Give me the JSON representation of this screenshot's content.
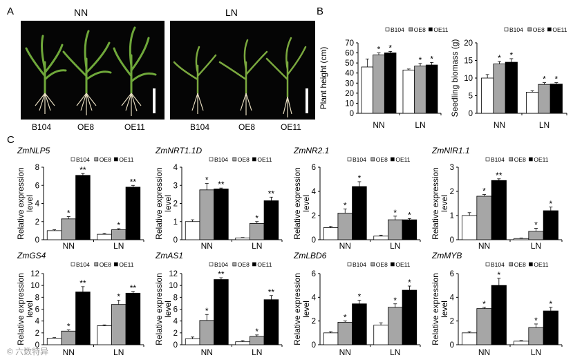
{
  "panel_labels": {
    "a": "A",
    "b": "B",
    "c": "C"
  },
  "photo": {
    "titles": [
      "NN",
      "LN"
    ],
    "plant_labels": [
      "B104",
      "OE8",
      "OE11",
      "B104",
      "OE8",
      "OE11"
    ]
  },
  "colors": {
    "B104": "#ffffff",
    "OE8": "#a6a6a6",
    "OE11": "#000000"
  },
  "watermark": "© 六数特异",
  "chart_data": [
    {
      "id": "b1",
      "type": "bar",
      "title": "",
      "italic": false,
      "categories": [
        "NN",
        "LN"
      ],
      "series": [
        {
          "name": "B104",
          "values": [
            46,
            43
          ]
        },
        {
          "name": "OE8",
          "values": [
            58,
            47
          ]
        },
        {
          "name": "OE11",
          "values": [
            60,
            48
          ]
        }
      ],
      "errors": [
        [
          8,
          1
        ],
        [
          2,
          2.5
        ],
        [
          1.5,
          2.5
        ]
      ],
      "stars": [
        [
          "",
          ""
        ],
        [
          "*",
          "*"
        ],
        [
          "*",
          "*"
        ]
      ],
      "ylabel": "Plant height (cm)",
      "ylim": [
        0,
        70
      ],
      "yticks": [
        "0",
        "10",
        "20",
        "30",
        "40",
        "50",
        "60",
        "70"
      ]
    },
    {
      "id": "b2",
      "type": "bar",
      "title": "",
      "italic": false,
      "categories": [
        "NN",
        "LN"
      ],
      "series": [
        {
          "name": "B104",
          "values": [
            10,
            6
          ]
        },
        {
          "name": "OE8",
          "values": [
            14,
            8.2
          ]
        },
        {
          "name": "OE11",
          "values": [
            14.5,
            8.3
          ]
        }
      ],
      "errors": [
        [
          1,
          0.4
        ],
        [
          0.7,
          0.5
        ],
        [
          1,
          0.4
        ]
      ],
      "stars": [
        [
          "",
          ""
        ],
        [
          "*",
          "*"
        ],
        [
          "*",
          "*"
        ]
      ],
      "ylabel": "Seedling biomass (g)",
      "ylim": [
        0,
        20
      ],
      "yticks": [
        "0",
        "5",
        "10",
        "15",
        "20"
      ]
    },
    {
      "id": "c1",
      "type": "bar",
      "title": "ZmNLP5",
      "italic": true,
      "categories": [
        "NN",
        "LN"
      ],
      "series": [
        {
          "name": "B104",
          "values": [
            1.0,
            0.6
          ]
        },
        {
          "name": "OE8",
          "values": [
            2.3,
            1.1
          ]
        },
        {
          "name": "OE11",
          "values": [
            7.1,
            5.8
          ]
        }
      ],
      "errors": [
        [
          0.1,
          0.1
        ],
        [
          0.25,
          0.12
        ],
        [
          0.2,
          0.2
        ]
      ],
      "stars": [
        [
          "",
          ""
        ],
        [
          "*",
          "*"
        ],
        [
          "**",
          "**"
        ]
      ],
      "ylabel": "Relative expression level",
      "ylim": [
        0,
        8
      ],
      "yticks": [
        "0",
        "2",
        "4",
        "6",
        "8"
      ]
    },
    {
      "id": "c2",
      "type": "bar",
      "title": "ZmNRT1.1D",
      "italic": true,
      "categories": [
        "NN",
        "LN"
      ],
      "series": [
        {
          "name": "B104",
          "values": [
            1.0,
            0.1
          ]
        },
        {
          "name": "OE8",
          "values": [
            2.75,
            0.9
          ]
        },
        {
          "name": "OE11",
          "values": [
            2.8,
            2.15
          ]
        }
      ],
      "errors": [
        [
          0.1,
          0.02
        ],
        [
          0.35,
          0.1
        ],
        [
          0.05,
          0.2
        ]
      ],
      "stars": [
        [
          "",
          ""
        ],
        [
          "*",
          "*"
        ],
        [
          "**",
          "**"
        ]
      ],
      "ylabel": "Relative expression level",
      "ylim": [
        0,
        4
      ],
      "yticks": [
        "0",
        "1",
        "2",
        "3",
        "4"
      ]
    },
    {
      "id": "c3",
      "type": "bar",
      "title": "ZmNR2.1",
      "italic": true,
      "categories": [
        "NN",
        "LN"
      ],
      "series": [
        {
          "name": "B104",
          "values": [
            1.0,
            0.3
          ]
        },
        {
          "name": "OE8",
          "values": [
            2.2,
            1.65
          ]
        },
        {
          "name": "OE11",
          "values": [
            4.4,
            1.65
          ]
        }
      ],
      "errors": [
        [
          0.1,
          0.08
        ],
        [
          0.35,
          0.3
        ],
        [
          0.4,
          0.1
        ]
      ],
      "stars": [
        [
          "",
          ""
        ],
        [
          "*",
          "*"
        ],
        [
          "*",
          "*"
        ]
      ],
      "ylabel": "Relative expression level",
      "ylim": [
        0,
        6
      ],
      "yticks": [
        "0",
        "2",
        "4",
        "6"
      ]
    },
    {
      "id": "c4",
      "type": "bar",
      "title": "ZmNIR1.1",
      "italic": true,
      "categories": [
        "NN",
        "LN"
      ],
      "series": [
        {
          "name": "B104",
          "values": [
            1.0,
            0.05
          ]
        },
        {
          "name": "OE8",
          "values": [
            1.8,
            0.35
          ]
        },
        {
          "name": "OE11",
          "values": [
            2.45,
            1.2
          ]
        }
      ],
      "errors": [
        [
          0.12,
          0.02
        ],
        [
          0.07,
          0.12
        ],
        [
          0.07,
          0.15
        ]
      ],
      "stars": [
        [
          "",
          ""
        ],
        [
          "*",
          "*"
        ],
        [
          "**",
          "*"
        ]
      ],
      "ylabel": "Relative expression level",
      "ylim": [
        0,
        3
      ],
      "yticks": [
        "0",
        "1",
        "2",
        "3"
      ]
    },
    {
      "id": "c5",
      "type": "bar",
      "title": "ZmGS4",
      "italic": true,
      "categories": [
        "NN",
        "LN"
      ],
      "series": [
        {
          "name": "B104",
          "values": [
            1.1,
            3.2
          ]
        },
        {
          "name": "OE8",
          "values": [
            2.3,
            6.8
          ]
        },
        {
          "name": "OE11",
          "values": [
            8.9,
            8.7
          ]
        }
      ],
      "errors": [
        [
          0.1,
          0.15
        ],
        [
          0.2,
          0.7
        ],
        [
          0.9,
          0.3
        ]
      ],
      "stars": [
        [
          "",
          ""
        ],
        [
          "*",
          "*"
        ],
        [
          "**",
          "**"
        ]
      ],
      "ylabel": "Relative expression level",
      "ylim": [
        0,
        12
      ],
      "yticks": [
        "0",
        "2",
        "4",
        "6",
        "8",
        "10",
        "12"
      ]
    },
    {
      "id": "c6",
      "type": "bar",
      "title": "ZmAS1",
      "italic": true,
      "categories": [
        "NN",
        "LN"
      ],
      "series": [
        {
          "name": "B104",
          "values": [
            1.0,
            0.5
          ]
        },
        {
          "name": "OE8",
          "values": [
            4.1,
            1.4
          ]
        },
        {
          "name": "OE11",
          "values": [
            11.0,
            7.6
          ]
        }
      ],
      "errors": [
        [
          0.3,
          0.2
        ],
        [
          1.0,
          0.25
        ],
        [
          0.3,
          0.7
        ]
      ],
      "stars": [
        [
          "",
          ""
        ],
        [
          "*",
          "*"
        ],
        [
          "**",
          "**"
        ]
      ],
      "ylabel": "Relative expression level",
      "ylim": [
        0,
        12
      ],
      "yticks": [
        "0",
        "2",
        "4",
        "6",
        "8",
        "10",
        "12"
      ]
    },
    {
      "id": "c7",
      "type": "bar",
      "title": "ZmLBD6",
      "italic": true,
      "categories": [
        "NN",
        "LN"
      ],
      "series": [
        {
          "name": "B104",
          "values": [
            1.0,
            1.65
          ]
        },
        {
          "name": "OE8",
          "values": [
            1.9,
            3.15
          ]
        },
        {
          "name": "OE11",
          "values": [
            3.45,
            4.6
          ]
        }
      ],
      "errors": [
        [
          0.1,
          0.2
        ],
        [
          0.1,
          0.3
        ],
        [
          0.3,
          0.35
        ]
      ],
      "stars": [
        [
          "",
          ""
        ],
        [
          "*",
          "*"
        ],
        [
          "*",
          "*"
        ]
      ],
      "ylabel": "Relative expression level",
      "ylim": [
        0,
        6
      ],
      "yticks": [
        "0",
        "2",
        "4",
        "6"
      ]
    },
    {
      "id": "c8",
      "type": "bar",
      "title": "ZmMYB",
      "italic": true,
      "categories": [
        "NN",
        "LN"
      ],
      "series": [
        {
          "name": "B104",
          "values": [
            1.0,
            0.3
          ]
        },
        {
          "name": "OE8",
          "values": [
            3.05,
            1.45
          ]
        },
        {
          "name": "OE11",
          "values": [
            5.0,
            2.85
          ]
        }
      ],
      "errors": [
        [
          0.1,
          0.05
        ],
        [
          0.1,
          0.3
        ],
        [
          0.6,
          0.3
        ]
      ],
      "stars": [
        [
          "",
          ""
        ],
        [
          "*",
          "*"
        ],
        [
          "*",
          "*"
        ]
      ],
      "ylabel": "Relative expression level",
      "ylim": [
        0,
        6
      ],
      "yticks": [
        "0",
        "2",
        "4",
        "6"
      ]
    }
  ]
}
